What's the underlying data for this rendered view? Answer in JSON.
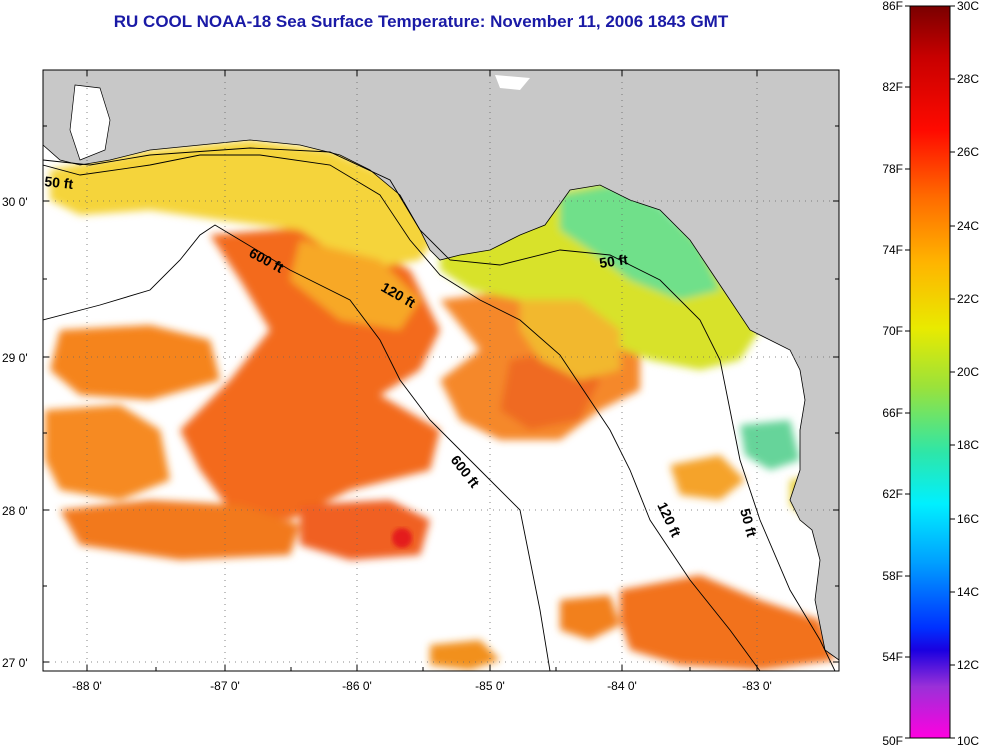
{
  "title": "RU COOL  NOAA-18  Sea Surface Temperature:  November 11, 2006 1843 GMT",
  "map": {
    "lon_ticks": [
      "-88 0'",
      "-87 0'",
      "-86 0'",
      "-85 0'",
      "-84 0'",
      "-83 0'"
    ],
    "lat_ticks": [
      "30 0'",
      "29 0'",
      "28 0'",
      "27 0'"
    ],
    "contours": [
      "50 ft",
      "600 ft",
      "120 ft",
      "50 ft",
      "600 ft",
      "120 ft",
      "50 ft"
    ]
  },
  "colorbar": {
    "f_labels": [
      "86F",
      "82F",
      "78F",
      "74F",
      "70F",
      "66F",
      "62F",
      "58F",
      "54F",
      "50F"
    ],
    "c_labels": [
      "30C",
      "28C",
      "26C",
      "24C",
      "22C",
      "20C",
      "18C",
      "16C",
      "14C",
      "12C",
      "10C"
    ]
  },
  "colors": {
    "title": "#1a1aa6",
    "land": "#c8c8c8",
    "cloud": "#ffffff",
    "warm": "#f26a1a",
    "cool": "#8ee04a"
  }
}
